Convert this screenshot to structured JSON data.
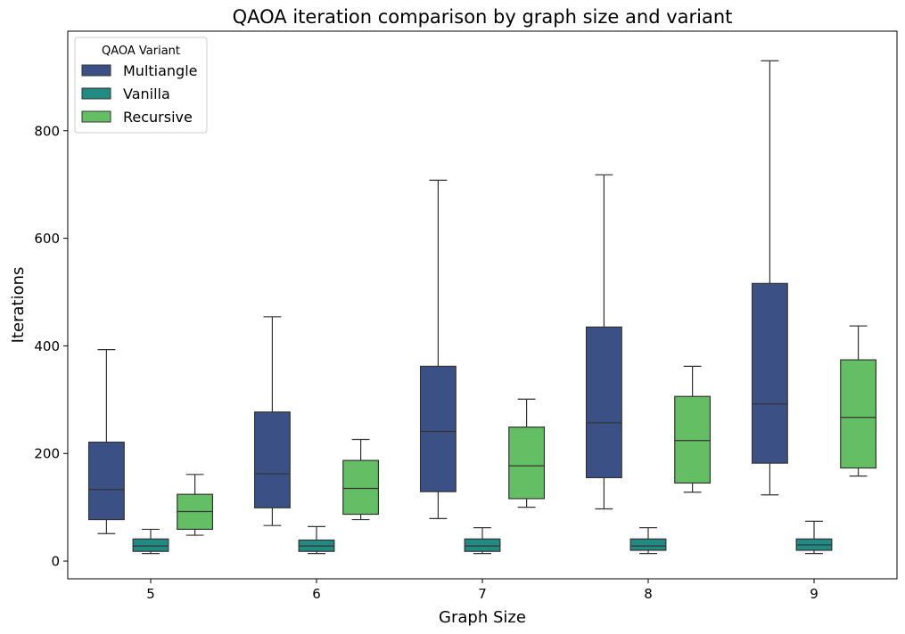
{
  "chart_data": {
    "type": "box",
    "title": "QAOA iteration comparison by graph size and variant",
    "xlabel": "Graph Size",
    "ylabel": "Iterations",
    "categories": [
      "5",
      "6",
      "7",
      "8",
      "9"
    ],
    "ylim": [
      -33,
      985
    ],
    "yticks": [
      0,
      200,
      400,
      600,
      800
    ],
    "grid": false,
    "legend": {
      "title": "QAOA Variant",
      "position": "top-left"
    },
    "series": [
      {
        "name": "Multiangle",
        "color": "#3b5185",
        "boxes": [
          {
            "whislo": 51,
            "q1": 77,
            "med": 133,
            "q3": 221,
            "whishi": 393
          },
          {
            "whislo": 66,
            "q1": 99,
            "med": 162,
            "q3": 277,
            "whishi": 454
          },
          {
            "whislo": 79,
            "q1": 129,
            "med": 241,
            "q3": 362,
            "whishi": 708
          },
          {
            "whislo": 97,
            "q1": 155,
            "med": 257,
            "q3": 435,
            "whishi": 718
          },
          {
            "whislo": 123,
            "q1": 182,
            "med": 292,
            "q3": 516,
            "whishi": 930
          }
        ]
      },
      {
        "name": "Vanilla",
        "color": "#218a82",
        "boxes": [
          {
            "whislo": 14,
            "q1": 18,
            "med": 28,
            "q3": 41,
            "whishi": 59
          },
          {
            "whislo": 14,
            "q1": 18,
            "med": 28,
            "q3": 39,
            "whishi": 64
          },
          {
            "whislo": 14,
            "q1": 18,
            "med": 28,
            "q3": 41,
            "whishi": 62
          },
          {
            "whislo": 14,
            "q1": 20,
            "med": 28,
            "q3": 41,
            "whishi": 62
          },
          {
            "whislo": 14,
            "q1": 20,
            "med": 30,
            "q3": 41,
            "whishi": 74
          }
        ]
      },
      {
        "name": "Recursive",
        "color": "#64bf64",
        "boxes": [
          {
            "whislo": 48,
            "q1": 59,
            "med": 92,
            "q3": 124,
            "whishi": 161
          },
          {
            "whislo": 77,
            "q1": 87,
            "med": 135,
            "q3": 187,
            "whishi": 226
          },
          {
            "whislo": 100,
            "q1": 116,
            "med": 177,
            "q3": 249,
            "whishi": 301
          },
          {
            "whislo": 128,
            "q1": 145,
            "med": 224,
            "q3": 306,
            "whishi": 362
          },
          {
            "whislo": 158,
            "q1": 173,
            "med": 267,
            "q3": 374,
            "whishi": 437
          }
        ]
      }
    ]
  }
}
